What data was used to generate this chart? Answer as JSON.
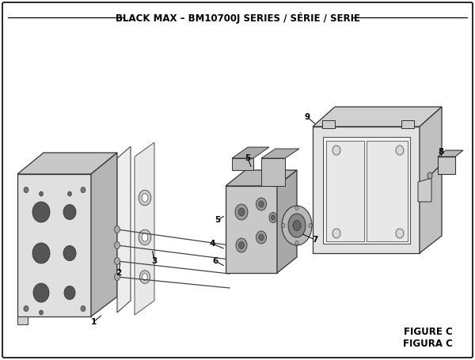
{
  "title": "BLACK MAX – BM10700J SERIES / SÉRIE / SERIE",
  "figure_label": "FIGURE C",
  "figura_label": "FIGURA C",
  "bg_color": "#ffffff",
  "line_color": "#000000",
  "title_fontsize": 8.5,
  "label_fontsize": 7.5,
  "figure_label_fontsize": 8.5
}
